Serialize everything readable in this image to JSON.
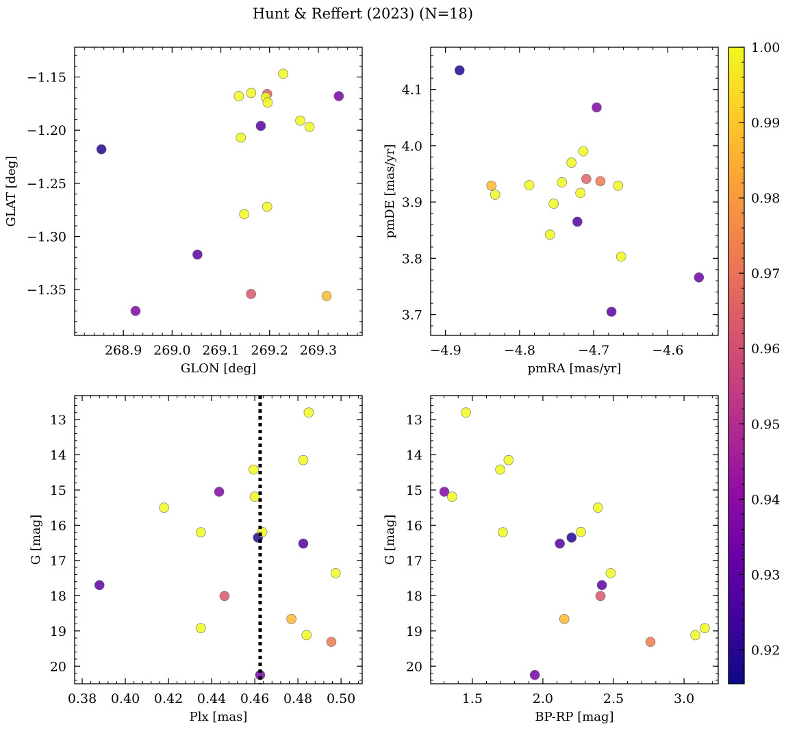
{
  "figure_title": "Hunt & Reffert (2023) (N=18)",
  "chart_data": [
    {
      "id": "p1",
      "type": "scatter",
      "title": "",
      "xlabel": "GLON [deg]",
      "ylabel": "GLAT [deg]",
      "xlim": [
        268.8,
        269.39
      ],
      "ylim": [
        -1.393,
        -1.122
      ],
      "y_inverted": false,
      "xticks": [
        268.9,
        269.0,
        269.1,
        269.2,
        269.3
      ],
      "xtick_labels": [
        "268.9",
        "269.0",
        "269.1",
        "269.2",
        "269.3"
      ],
      "yticks": [
        -1.35,
        -1.3,
        -1.25,
        -1.2,
        -1.15
      ],
      "ytick_labels": [
        "−1.35",
        "−1.30",
        "−1.25",
        "−1.20",
        "−1.15"
      ],
      "points": [
        {
          "x": 268.855,
          "y": -1.218,
          "c": 0.919
        },
        {
          "x": 268.925,
          "y": -1.37,
          "c": 0.937
        },
        {
          "x": 269.052,
          "y": -1.317,
          "c": 0.93
        },
        {
          "x": 269.137,
          "y": -1.168,
          "c": 1.0
        },
        {
          "x": 269.141,
          "y": -1.207,
          "c": 1.0
        },
        {
          "x": 269.148,
          "y": -1.279,
          "c": 1.0
        },
        {
          "x": 269.162,
          "y": -1.165,
          "c": 1.0
        },
        {
          "x": 269.162,
          "y": -1.354,
          "c": 0.962
        },
        {
          "x": 269.182,
          "y": -1.196,
          "c": 0.928
        },
        {
          "x": 269.195,
          "y": -1.166,
          "c": 0.966
        },
        {
          "x": 269.192,
          "y": -1.169,
          "c": 1.0
        },
        {
          "x": 269.195,
          "y": -1.272,
          "c": 1.0
        },
        {
          "x": 269.196,
          "y": -1.174,
          "c": 1.0
        },
        {
          "x": 269.228,
          "y": -1.147,
          "c": 1.0
        },
        {
          "x": 269.263,
          "y": -1.191,
          "c": 1.0
        },
        {
          "x": 269.282,
          "y": -1.197,
          "c": 1.0
        },
        {
          "x": 269.317,
          "y": -1.356,
          "c": 0.987
        },
        {
          "x": 269.342,
          "y": -1.168,
          "c": 0.935
        }
      ]
    },
    {
      "id": "p2",
      "type": "scatter",
      "title": "",
      "xlabel": "pmRA [mas/yr]",
      "ylabel": "pmDE [mas/yr]",
      "xlim": [
        -4.92,
        -4.532
      ],
      "ylim": [
        3.663,
        4.175
      ],
      "y_inverted": false,
      "xticks": [
        -4.9,
        -4.8,
        -4.7,
        -4.6
      ],
      "xtick_labels": [
        "−4.9",
        "−4.8",
        "−4.7",
        "−4.6"
      ],
      "yticks": [
        3.7,
        3.8,
        3.9,
        4.0,
        4.1
      ],
      "ytick_labels": [
        "3.7",
        "3.8",
        "3.9",
        "4.0",
        "4.1"
      ],
      "points": [
        {
          "x": -4.881,
          "y": 4.134,
          "c": 0.919
        },
        {
          "x": -4.838,
          "y": 3.929,
          "c": 0.987
        },
        {
          "x": -4.833,
          "y": 3.913,
          "c": 1.0
        },
        {
          "x": -4.787,
          "y": 3.93,
          "c": 1.0
        },
        {
          "x": -4.759,
          "y": 3.842,
          "c": 1.0
        },
        {
          "x": -4.754,
          "y": 3.897,
          "c": 1.0
        },
        {
          "x": -4.743,
          "y": 3.935,
          "c": 1.0
        },
        {
          "x": -4.73,
          "y": 3.97,
          "c": 1.0
        },
        {
          "x": -4.722,
          "y": 3.865,
          "c": 0.928
        },
        {
          "x": -4.718,
          "y": 3.916,
          "c": 1.0
        },
        {
          "x": -4.714,
          "y": 3.99,
          "c": 1.0
        },
        {
          "x": -4.71,
          "y": 3.941,
          "c": 0.966
        },
        {
          "x": -4.696,
          "y": 4.068,
          "c": 0.937
        },
        {
          "x": -4.691,
          "y": 3.937,
          "c": 0.972
        },
        {
          "x": -4.676,
          "y": 3.705,
          "c": 0.93
        },
        {
          "x": -4.667,
          "y": 3.929,
          "c": 1.0
        },
        {
          "x": -4.663,
          "y": 3.803,
          "c": 1.0
        },
        {
          "x": -4.558,
          "y": 3.766,
          "c": 0.933
        }
      ]
    },
    {
      "id": "p3",
      "type": "scatter",
      "title": "",
      "xlabel": "Plx [mas]",
      "ylabel": "G [mag]",
      "xlim": [
        0.3765,
        0.5098
      ],
      "ylim": [
        20.5,
        12.32
      ],
      "y_inverted": true,
      "vline": 0.4625,
      "xticks": [
        0.38,
        0.4,
        0.42,
        0.44,
        0.46,
        0.48,
        0.5
      ],
      "xtick_labels": [
        "0.38",
        "0.40",
        "0.42",
        "0.44",
        "0.46",
        "0.48",
        "0.50"
      ],
      "yticks": [
        13,
        14,
        15,
        16,
        17,
        18,
        19,
        20
      ],
      "ytick_labels": [
        "13",
        "14",
        "15",
        "16",
        "17",
        "18",
        "19",
        "20"
      ],
      "points": [
        {
          "x": 0.388,
          "y": 17.7,
          "c": 0.93
        },
        {
          "x": 0.418,
          "y": 15.5,
          "c": 1.0
        },
        {
          "x": 0.435,
          "y": 16.2,
          "c": 1.0
        },
        {
          "x": 0.435,
          "y": 18.92,
          "c": 1.0
        },
        {
          "x": 0.4435,
          "y": 15.05,
          "c": 0.937
        },
        {
          "x": 0.446,
          "y": 18.01,
          "c": 0.962
        },
        {
          "x": 0.4595,
          "y": 14.42,
          "c": 1.0
        },
        {
          "x": 0.46,
          "y": 15.19,
          "c": 1.0
        },
        {
          "x": 0.4615,
          "y": 16.35,
          "c": 0.919
        },
        {
          "x": 0.4625,
          "y": 20.25,
          "c": 0.935
        },
        {
          "x": 0.4635,
          "y": 16.19,
          "c": 1.0
        },
        {
          "x": 0.477,
          "y": 18.66,
          "c": 0.987
        },
        {
          "x": 0.4825,
          "y": 14.15,
          "c": 1.0
        },
        {
          "x": 0.4825,
          "y": 16.52,
          "c": 0.928
        },
        {
          "x": 0.484,
          "y": 19.12,
          "c": 1.0
        },
        {
          "x": 0.485,
          "y": 12.8,
          "c": 1.0
        },
        {
          "x": 0.4955,
          "y": 19.31,
          "c": 0.972
        },
        {
          "x": 0.4975,
          "y": 17.36,
          "c": 1.0
        }
      ]
    },
    {
      "id": "p4",
      "type": "scatter",
      "title": "",
      "xlabel": "BP-RP [mag]",
      "ylabel": "G [mag]",
      "xlim": [
        1.205,
        3.242
      ],
      "ylim": [
        20.5,
        12.32
      ],
      "y_inverted": true,
      "xticks": [
        1.5,
        2.0,
        2.5,
        3.0
      ],
      "xtick_labels": [
        "1.5",
        "2.0",
        "2.5",
        "3.0"
      ],
      "yticks": [
        13,
        14,
        15,
        16,
        17,
        18,
        19,
        20
      ],
      "ytick_labels": [
        "13",
        "14",
        "15",
        "16",
        "17",
        "18",
        "19",
        "20"
      ],
      "points": [
        {
          "x": 1.302,
          "y": 15.05,
          "c": 0.937
        },
        {
          "x": 1.357,
          "y": 15.19,
          "c": 1.0
        },
        {
          "x": 1.455,
          "y": 12.8,
          "c": 1.0
        },
        {
          "x": 1.698,
          "y": 14.42,
          "c": 1.0
        },
        {
          "x": 1.716,
          "y": 16.2,
          "c": 1.0
        },
        {
          "x": 1.757,
          "y": 14.15,
          "c": 1.0
        },
        {
          "x": 1.943,
          "y": 20.25,
          "c": 0.935
        },
        {
          "x": 2.12,
          "y": 16.52,
          "c": 0.928
        },
        {
          "x": 2.152,
          "y": 18.66,
          "c": 0.987
        },
        {
          "x": 2.203,
          "y": 16.35,
          "c": 0.919
        },
        {
          "x": 2.27,
          "y": 16.19,
          "c": 1.0
        },
        {
          "x": 2.39,
          "y": 15.5,
          "c": 1.0
        },
        {
          "x": 2.408,
          "y": 18.01,
          "c": 0.962
        },
        {
          "x": 2.418,
          "y": 17.7,
          "c": 0.93
        },
        {
          "x": 2.48,
          "y": 17.36,
          "c": 1.0
        },
        {
          "x": 2.762,
          "y": 19.31,
          "c": 0.972
        },
        {
          "x": 3.08,
          "y": 19.12,
          "c": 1.0
        },
        {
          "x": 3.147,
          "y": 18.92,
          "c": 1.0
        }
      ]
    }
  ],
  "colorbar": {
    "cmap": "plasma",
    "range": [
      0.9155,
      1.0
    ],
    "ticks": [
      0.92,
      0.93,
      0.94,
      0.95,
      0.96,
      0.97,
      0.98,
      0.99,
      1.0
    ],
    "tick_labels": [
      "0.92",
      "0.93",
      "0.94",
      "0.95",
      "0.96",
      "0.97",
      "0.98",
      "0.99",
      "1.00"
    ]
  }
}
